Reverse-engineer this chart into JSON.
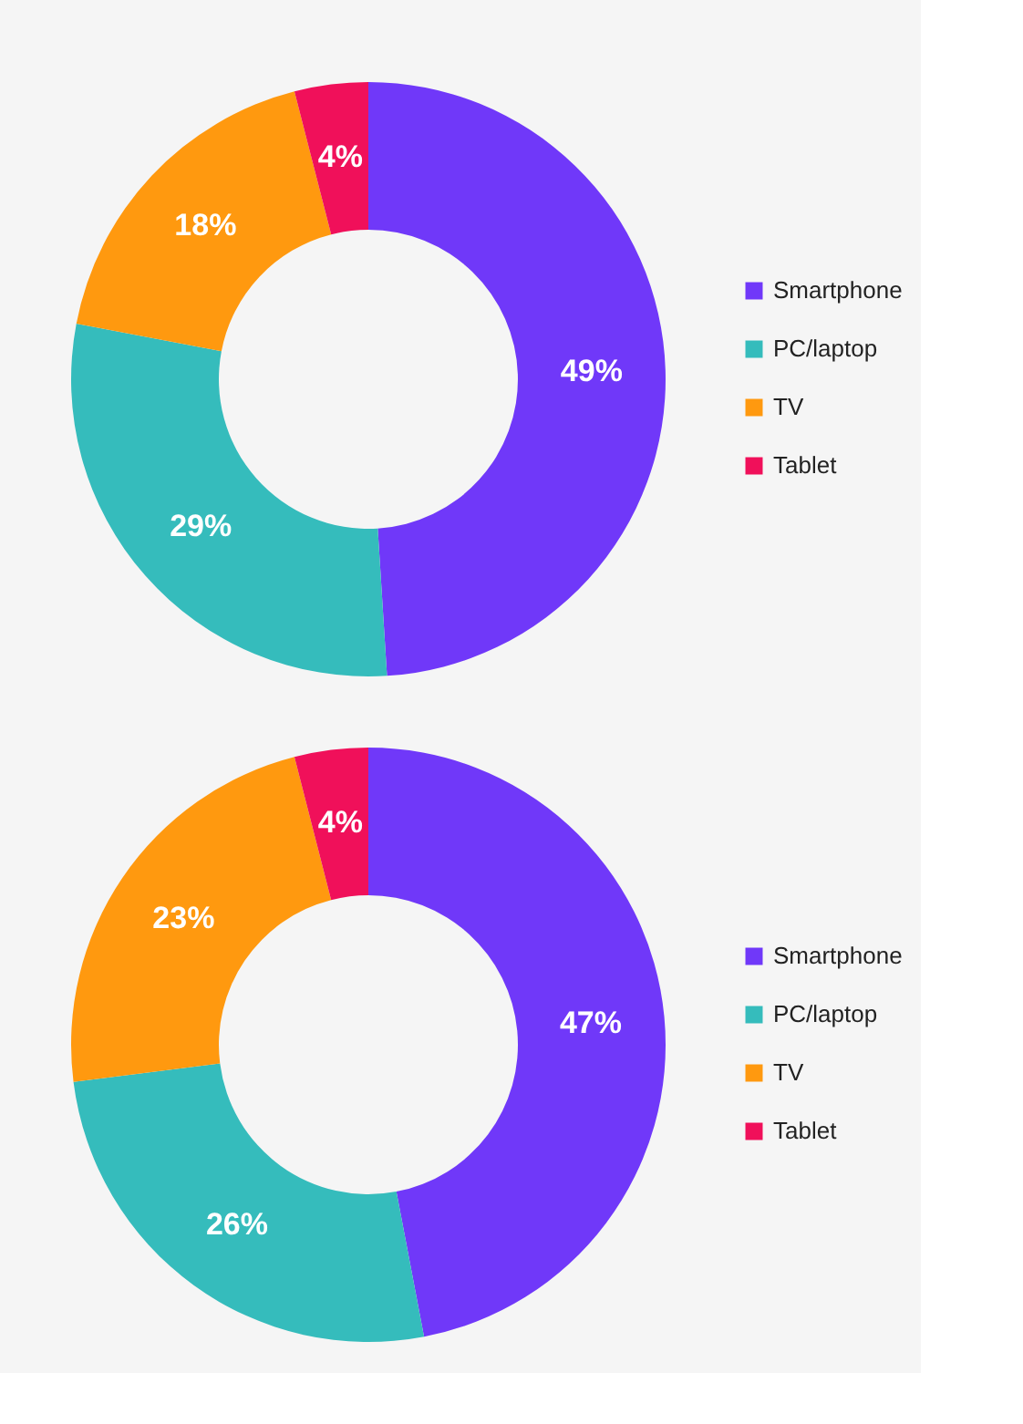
{
  "chart_data": [
    {
      "type": "donut",
      "categories": [
        "Smartphone",
        "PC/laptop",
        "TV",
        "Tablet"
      ],
      "values": [
        49,
        29,
        18,
        4
      ],
      "value_labels": [
        "49%",
        "29%",
        "18%",
        "4%"
      ],
      "colors": [
        "#7038f9",
        "#35bcbc",
        "#ff990f",
        "#f0105a"
      ],
      "legend": "right"
    },
    {
      "type": "donut",
      "categories": [
        "Smartphone",
        "PC/laptop",
        "TV",
        "Tablet"
      ],
      "values": [
        47,
        26,
        23,
        4
      ],
      "value_labels": [
        "47%",
        "26%",
        "23%",
        "4%"
      ],
      "colors": [
        "#7038f9",
        "#35bcbc",
        "#ff990f",
        "#f0105a"
      ],
      "legend": "right"
    }
  ]
}
